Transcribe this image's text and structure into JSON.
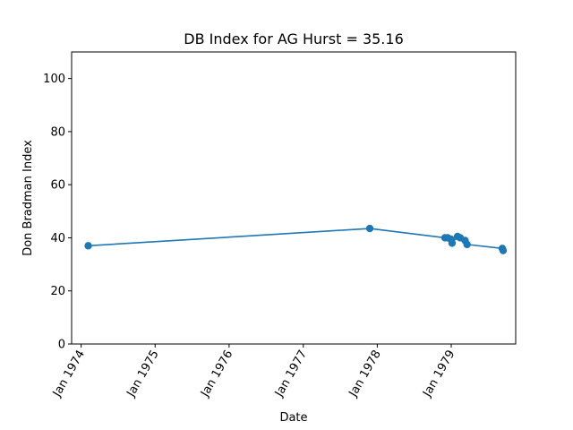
{
  "chart_data": {
    "type": "line",
    "title": "DB Index for AG Hurst = 35.16",
    "xlabel": "Date",
    "ylabel": "Don Bradman Index",
    "xlim": [
      "1973-11-15",
      "1979-11-15"
    ],
    "ylim": [
      0,
      110
    ],
    "xticks": [
      {
        "date": "1974-01-01",
        "label": "Jan 1974"
      },
      {
        "date": "1975-01-01",
        "label": "Jan 1975"
      },
      {
        "date": "1976-01-01",
        "label": "Jan 1976"
      },
      {
        "date": "1977-01-01",
        "label": "Jan 1977"
      },
      {
        "date": "1978-01-01",
        "label": "Jan 1978"
      },
      {
        "date": "1979-01-01",
        "label": "Jan 1979"
      }
    ],
    "yticks": [
      0,
      20,
      40,
      60,
      80,
      100
    ],
    "grid": false,
    "line_color": "#1f77b4",
    "series": [
      {
        "points": [
          {
            "x": "1974-02-05",
            "y": 37.0
          },
          {
            "x": "1977-11-25",
            "y": 43.5
          },
          {
            "x": "1978-12-01",
            "y": 40.0
          },
          {
            "x": "1978-12-14",
            "y": 40.0
          },
          {
            "x": "1978-12-30",
            "y": 39.5
          },
          {
            "x": "1979-01-05",
            "y": 38.0
          },
          {
            "x": "1979-02-01",
            "y": 40.5
          },
          {
            "x": "1979-02-14",
            "y": 40.0
          },
          {
            "x": "1979-03-10",
            "y": 39.0
          },
          {
            "x": "1979-03-20",
            "y": 37.5
          },
          {
            "x": "1979-09-10",
            "y": 36.0
          },
          {
            "x": "1979-09-14",
            "y": 35.2
          }
        ]
      }
    ]
  }
}
